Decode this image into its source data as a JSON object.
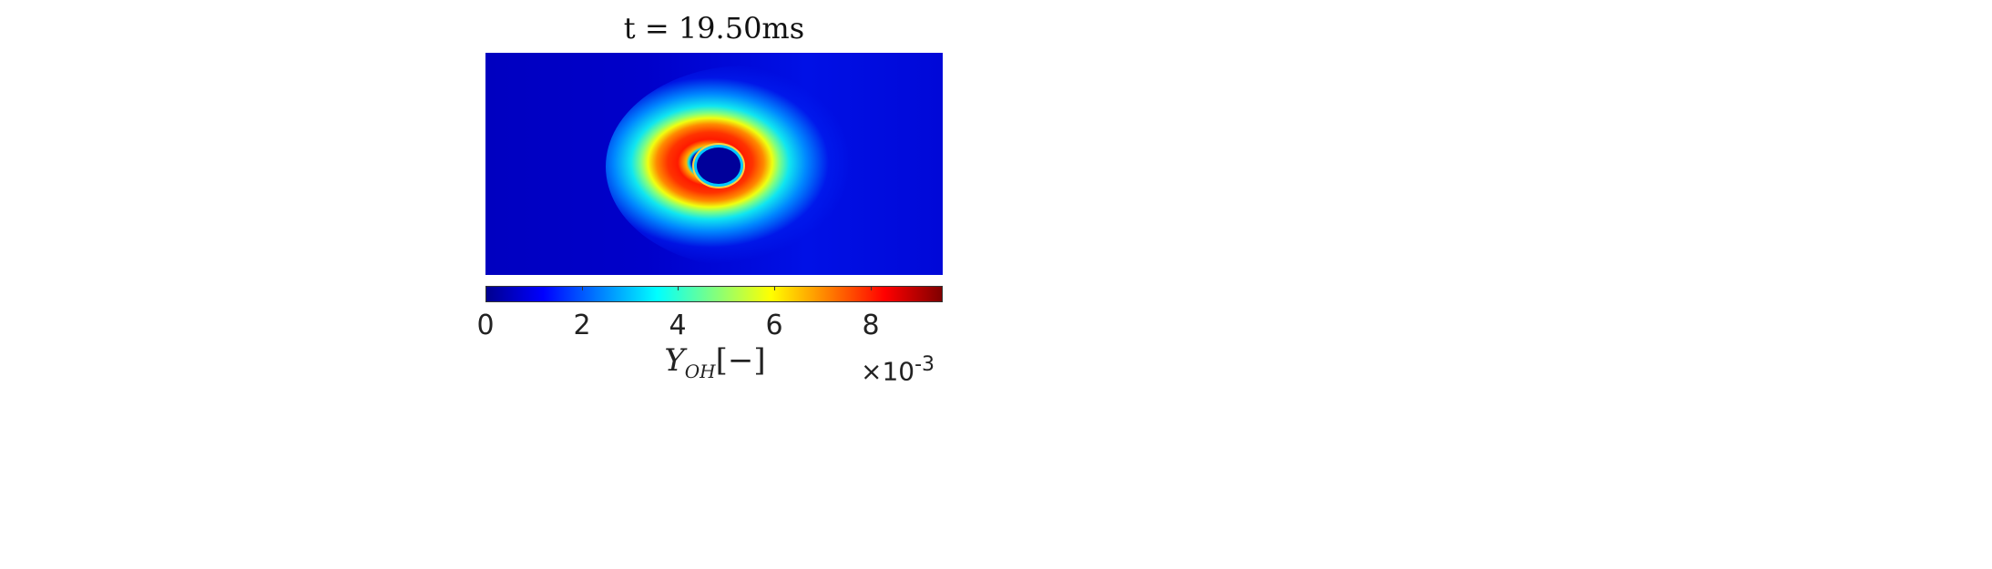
{
  "chart_data": {
    "type": "heatmap",
    "title": "t = 19.50ms",
    "colormap": "jet",
    "colorbar": {
      "orientation": "horizontal",
      "range": [
        0,
        0.0095
      ],
      "ticks": [
        "0",
        "2",
        "4",
        "6",
        "8"
      ],
      "label_main": "Y",
      "label_sub": "OH",
      "label_suffix": "[−]",
      "multiplier_base": "×10",
      "multiplier_exp": "-3"
    },
    "field": {
      "background_level": 0.001,
      "ring_peak_level": 0.009,
      "core_level": 0.0
    }
  }
}
